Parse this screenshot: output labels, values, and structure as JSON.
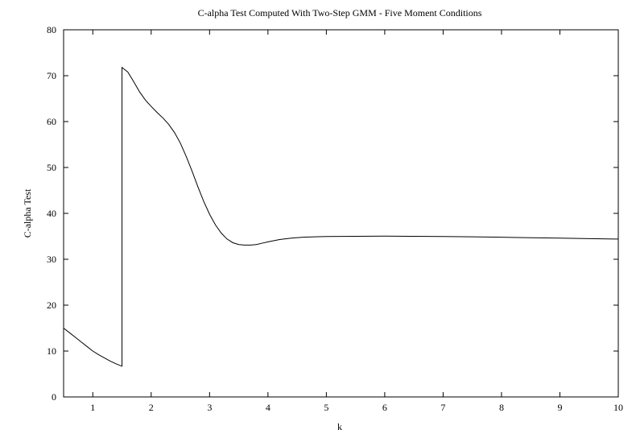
{
  "chart_data": {
    "type": "line",
    "title": "C-alpha Test Computed With Two-Step GMM - Five Moment Conditions",
    "xlabel": "k",
    "ylabel": "C-alpha Test",
    "xlim": [
      0.5,
      10
    ],
    "ylim": [
      0,
      80
    ],
    "xticks": [
      1,
      2,
      3,
      4,
      5,
      6,
      7,
      8,
      9,
      10
    ],
    "yticks": [
      0,
      10,
      20,
      30,
      40,
      50,
      60,
      70,
      80
    ],
    "grid": false,
    "legend": "none",
    "series": [
      {
        "x": [
          0.5,
          0.6,
          0.7,
          0.8,
          0.9,
          1.0,
          1.1,
          1.2,
          1.3,
          1.4,
          1.5,
          1.5,
          1.6,
          1.7,
          1.8,
          1.9,
          2.0,
          2.1,
          2.2,
          2.3,
          2.4,
          2.5,
          2.6,
          2.7,
          2.8,
          2.9,
          3.0,
          3.1,
          3.2,
          3.3,
          3.4,
          3.5,
          3.6,
          3.7,
          3.8,
          3.9,
          4.0,
          4.2,
          4.4,
          4.6,
          4.8,
          5.0,
          5.5,
          6.0,
          6.5,
          7.0,
          7.5,
          8.0,
          8.5,
          9.0,
          9.5,
          10.0
        ],
        "y": [
          15.0,
          14.0,
          13.0,
          12.0,
          11.0,
          10.0,
          9.2,
          8.5,
          7.8,
          7.2,
          6.7,
          71.8,
          70.8,
          68.7,
          66.5,
          64.7,
          63.3,
          62.0,
          60.8,
          59.4,
          57.6,
          55.3,
          52.4,
          49.2,
          45.8,
          42.6,
          39.8,
          37.5,
          35.7,
          34.4,
          33.6,
          33.2,
          33.1,
          33.1,
          33.2,
          33.5,
          33.8,
          34.3,
          34.6,
          34.8,
          34.9,
          34.95,
          35.0,
          35.05,
          35.0,
          34.95,
          34.9,
          34.8,
          34.7,
          34.6,
          34.5,
          34.4
        ]
      }
    ]
  }
}
